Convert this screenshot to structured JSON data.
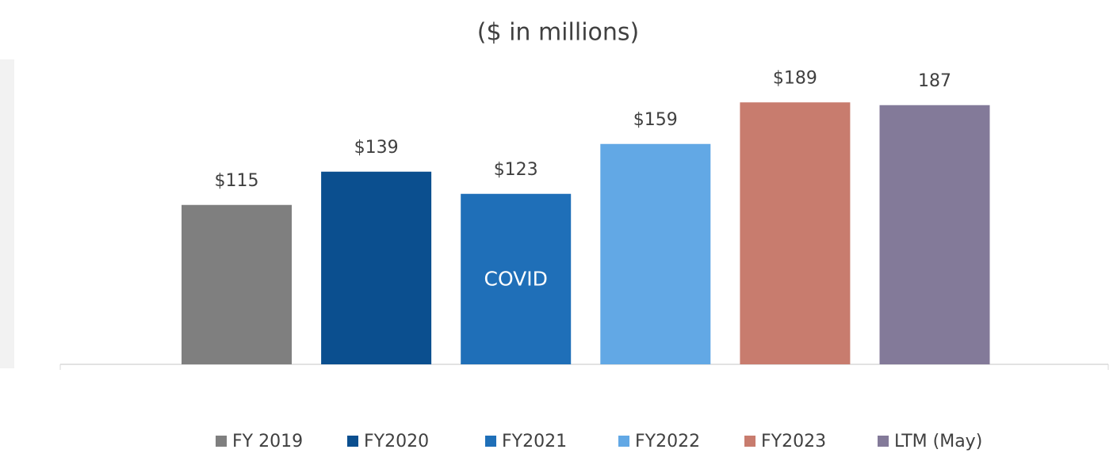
{
  "chart_data": {
    "type": "bar",
    "title": "($ in millions)",
    "ylim": [
      0,
      220
    ],
    "annotations": [
      {
        "text": "COVID",
        "series": 2
      }
    ],
    "series": [
      {
        "name": "FY 2019",
        "color": "#7f7f7f",
        "values": [
          115
        ],
        "value_labels": [
          "$115"
        ]
      },
      {
        "name": "FY2020",
        "color": "#0b4f8f",
        "values": [
          139
        ],
        "value_labels": [
          "$139"
        ]
      },
      {
        "name": "FY2021",
        "color": "#1f6fb8",
        "values": [
          123
        ],
        "value_labels": [
          "$123"
        ]
      },
      {
        "name": "FY2022",
        "color": "#62a8e5",
        "values": [
          159
        ],
        "value_labels": [
          "$159"
        ]
      },
      {
        "name": "FY2023",
        "color": "#c87c6e",
        "values": [
          189
        ],
        "value_labels": [
          "$189"
        ]
      },
      {
        "name": "LTM (May)",
        "color": "#837a99",
        "values": [
          187
        ],
        "value_labels": [
          "187"
        ]
      }
    ]
  }
}
